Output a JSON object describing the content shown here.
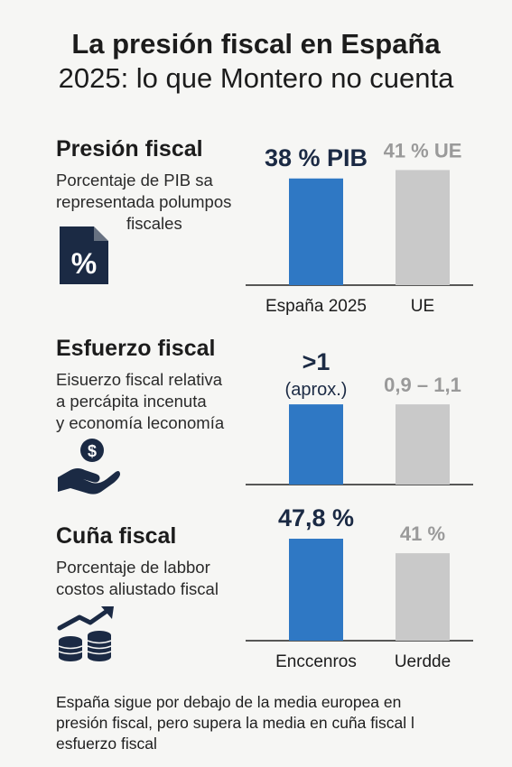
{
  "title": {
    "line1": "La presión fiscal en España",
    "line2": "2025: lo que Montero no cuenta"
  },
  "sections": [
    {
      "title": "Presión fiscal",
      "desc": [
        "Porcentaje de PIB sa",
        "representada polumpos",
        "fiscales"
      ],
      "icon": "percent-document-icon"
    },
    {
      "title": "Esfuerzo fiscal",
      "desc": [
        "Eisuerzo fiscal relativa",
        "a percápita incenuta",
        "y economía leconomía"
      ],
      "icon": "hand-coin-icon"
    },
    {
      "title": "Cuña fiscal",
      "desc": [
        "Porcentaje de labbor",
        "costos aliustado fiscal"
      ],
      "icon": "coins-growth-icon"
    }
  ],
  "chart_data": [
    {
      "type": "bar",
      "categories": [
        "España 2025",
        "UE"
      ],
      "values": [
        38,
        41
      ],
      "value_labels": [
        "38 % PIB",
        "41 % UE"
      ],
      "ylim": [
        0,
        45
      ],
      "colors": [
        "#2f78c4",
        "#c9c9c9"
      ],
      "label_colors": [
        "#1b2a44",
        "#9a9a9a"
      ]
    },
    {
      "type": "bar",
      "categories": [
        "",
        ""
      ],
      "values": [
        1.0,
        1.0
      ],
      "value_labels": [
        ">1",
        "0,9 – 1,1"
      ],
      "value_sublabels": [
        "(aprox.)",
        ""
      ],
      "ylim": [
        0,
        1.8
      ],
      "colors": [
        "#2f78c4",
        "#c9c9c9"
      ],
      "label_colors": [
        "#1b2a44",
        "#9a9a9a"
      ]
    },
    {
      "type": "bar",
      "categories": [
        "Enccenros",
        "Uerdde"
      ],
      "values": [
        47.8,
        41
      ],
      "value_labels": [
        "47,8 %",
        "41 %"
      ],
      "ylim": [
        0,
        55
      ],
      "colors": [
        "#2f78c4",
        "#c9c9c9"
      ],
      "label_colors": [
        "#1b2a44",
        "#9a9a9a"
      ]
    }
  ],
  "footer": [
    "España sigue por debajo de la media europea en",
    "presión fiscal, pero supera la media en cuña fiscal l",
    "esfuerzo fiscal"
  ],
  "colors": {
    "accent": "#2f78c4",
    "comparison": "#c9c9c9",
    "icon": "#1b2a44"
  }
}
